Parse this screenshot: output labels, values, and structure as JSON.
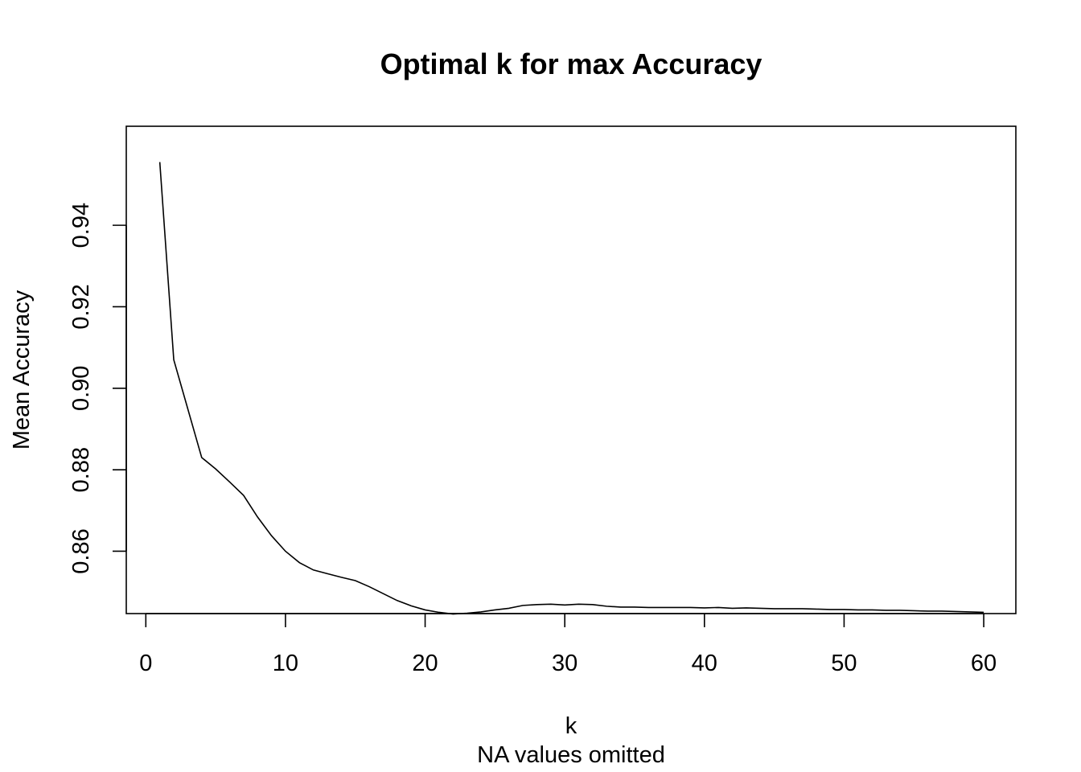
{
  "chart_data": {
    "type": "line",
    "title": "Optimal k for max Accuracy",
    "xlabel": "k",
    "subtitle": "NA values omitted",
    "ylabel": "Mean Accuracy",
    "xlim": [
      -1.4,
      62.3
    ],
    "ylim": [
      0.8447,
      0.9643
    ],
    "xticks": [
      "0",
      "10",
      "20",
      "30",
      "40",
      "50",
      "60"
    ],
    "yticks": [
      "0.86",
      "0.88",
      "0.90",
      "0.92",
      "0.94"
    ],
    "grid": false,
    "series": [
      {
        "x": [
          1,
          2,
          3,
          4,
          5,
          6,
          7,
          8,
          9,
          10,
          11,
          12,
          13,
          14,
          15,
          16,
          17,
          18,
          19,
          20,
          21,
          22,
          23,
          24,
          25,
          26,
          27,
          28,
          29,
          30,
          31,
          32,
          33,
          34,
          35,
          36,
          37,
          38,
          39,
          40,
          41,
          42,
          43,
          44,
          45,
          46,
          47,
          48,
          49,
          50,
          51,
          52,
          53,
          54,
          55,
          56,
          57,
          58,
          59,
          60
        ],
        "y": [
          0.9555,
          0.907,
          0.895,
          0.883,
          0.8802,
          0.877,
          0.8737,
          0.8684,
          0.8638,
          0.86,
          0.8572,
          0.8554,
          0.8545,
          0.8536,
          0.8528,
          0.8513,
          0.8496,
          0.8479,
          0.8466,
          0.8456,
          0.845,
          0.8446,
          0.8448,
          0.8451,
          0.8456,
          0.846,
          0.8467,
          0.8469,
          0.847,
          0.8468,
          0.847,
          0.8469,
          0.8465,
          0.8463,
          0.8463,
          0.8462,
          0.8462,
          0.8462,
          0.8462,
          0.8461,
          0.8462,
          0.846,
          0.8461,
          0.846,
          0.8459,
          0.8459,
          0.8459,
          0.8458,
          0.8457,
          0.8457,
          0.8456,
          0.8456,
          0.8455,
          0.8455,
          0.8454,
          0.8453,
          0.8453,
          0.8452,
          0.8451,
          0.845
        ]
      }
    ]
  }
}
